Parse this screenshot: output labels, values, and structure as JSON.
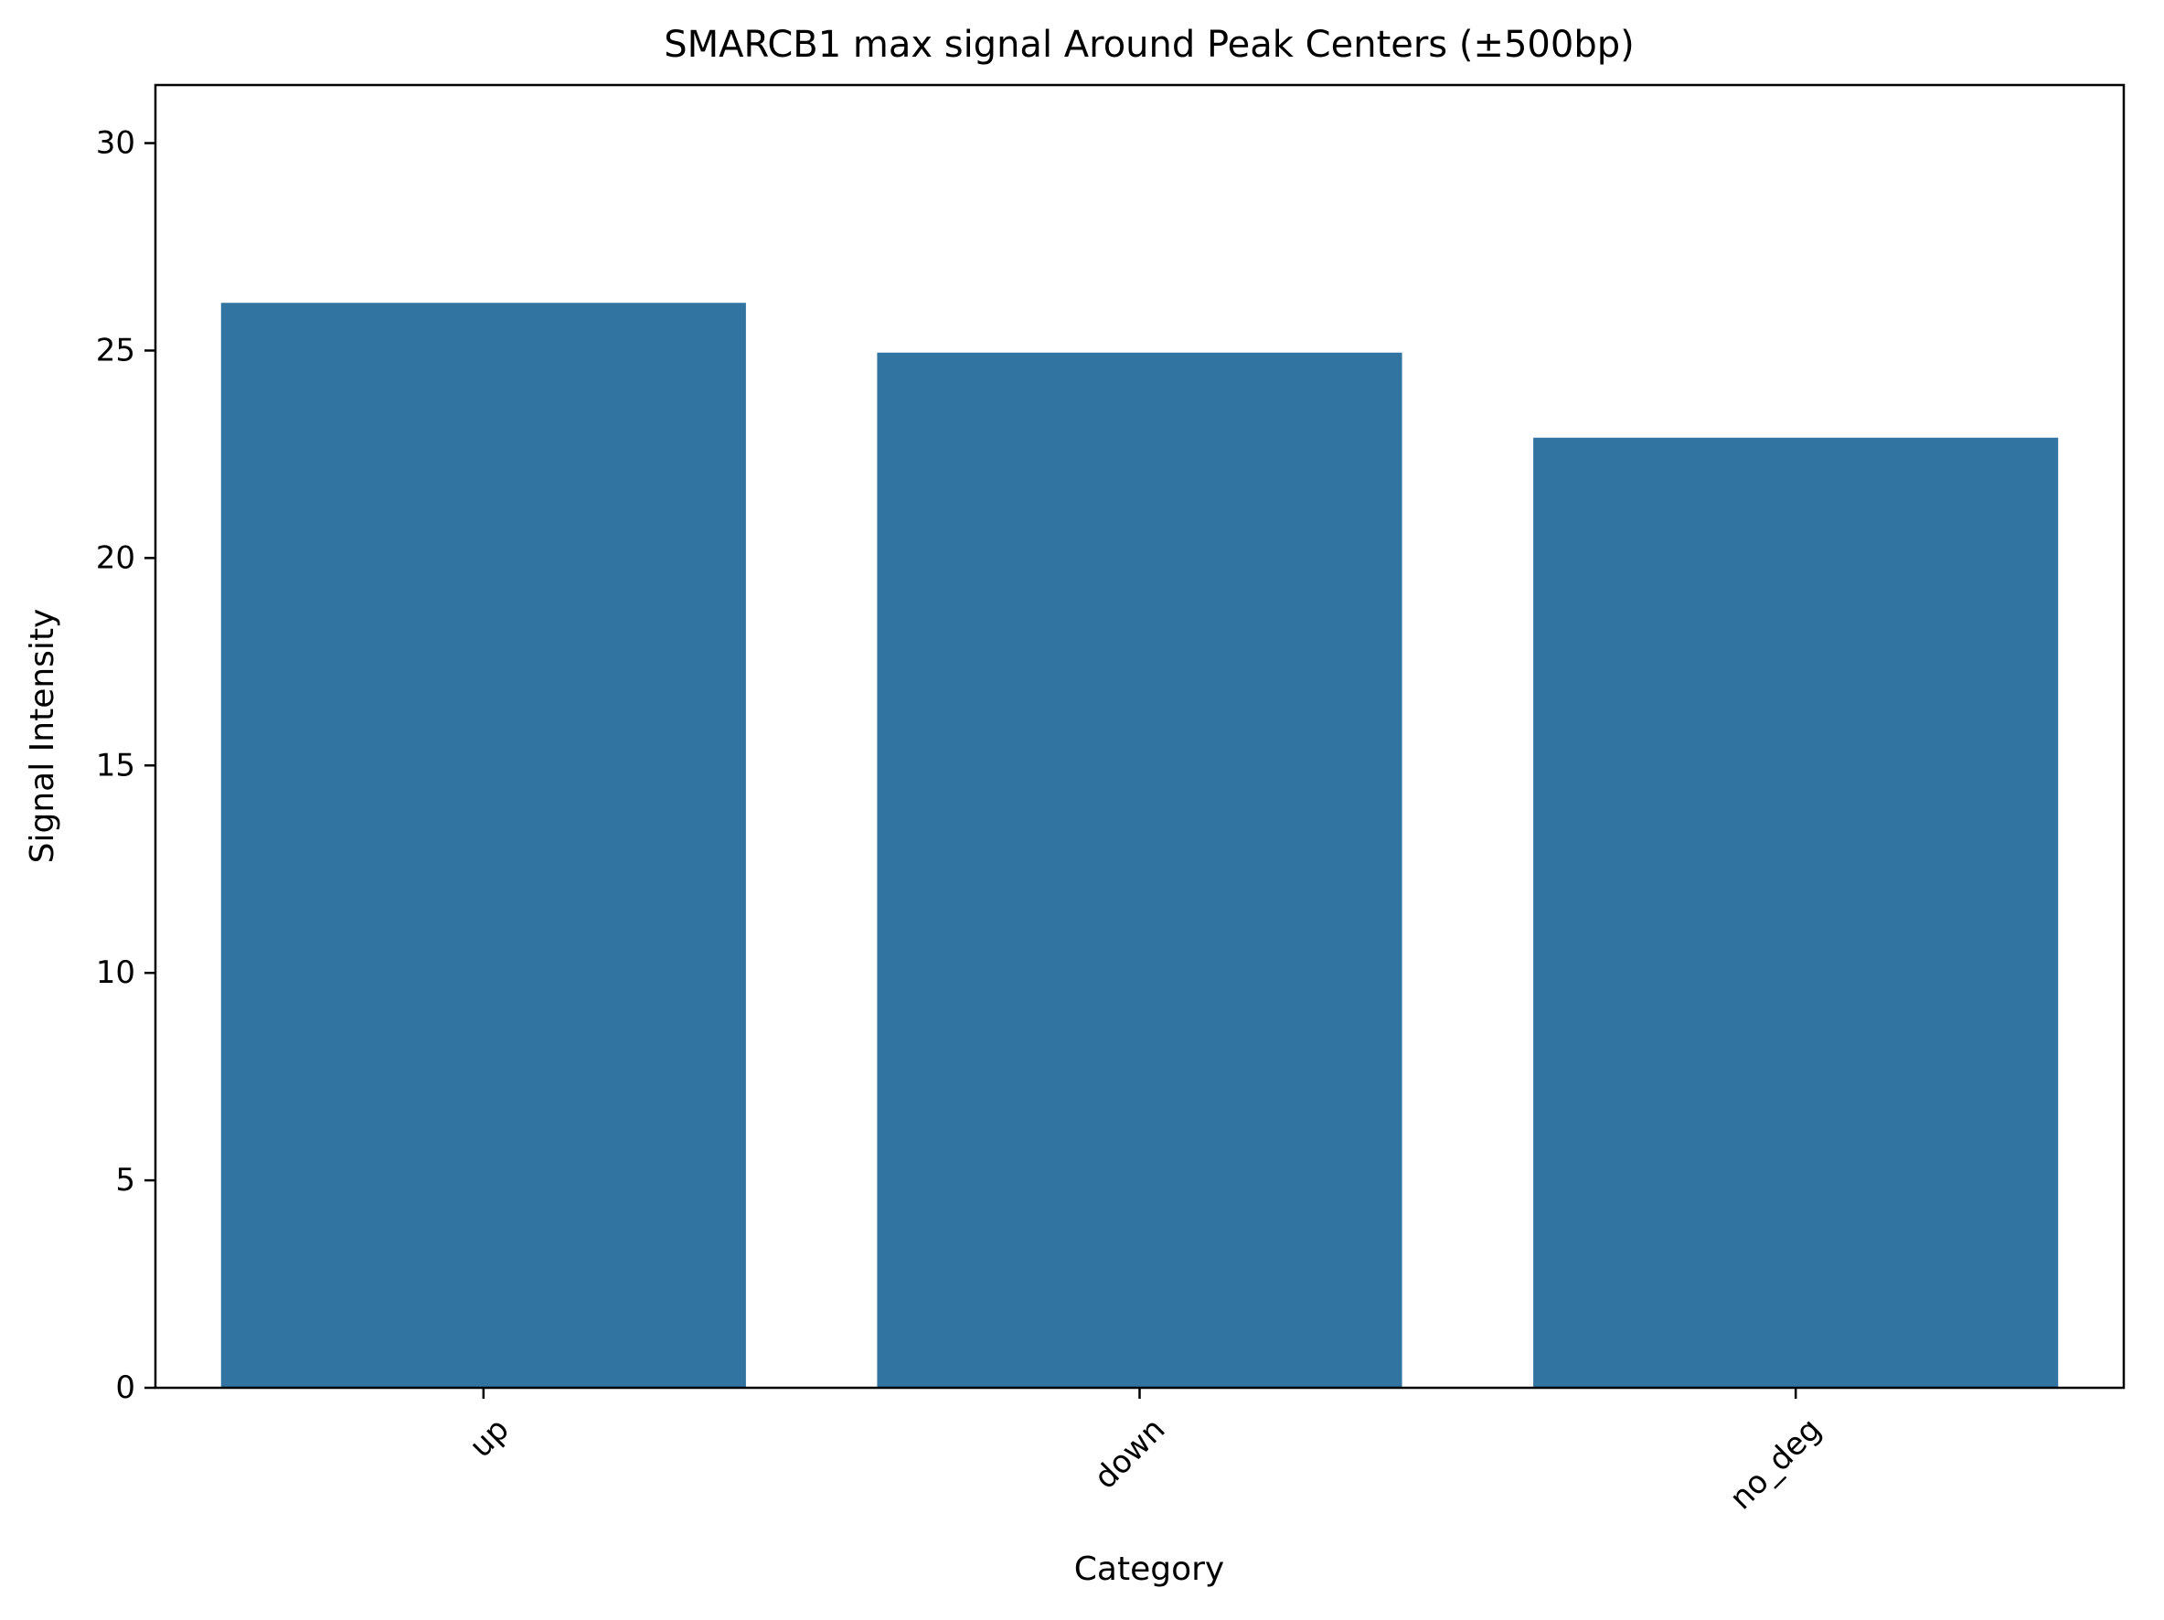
{
  "chart_data": {
    "type": "bar",
    "title": "SMARCB1 max signal Around Peak Centers (±500bp)",
    "xlabel": "Category",
    "ylabel": "Signal Intensity",
    "categories": [
      "up",
      "down",
      "no_deg"
    ],
    "values": [
      26.15,
      24.95,
      22.9
    ],
    "ylim": [
      0,
      31.4
    ],
    "yticks": [
      0,
      5,
      10,
      15,
      20,
      25,
      30
    ],
    "xtick_rotation_deg": 45,
    "bar_color": "#3274a1",
    "grid": false,
    "legend": "none"
  }
}
